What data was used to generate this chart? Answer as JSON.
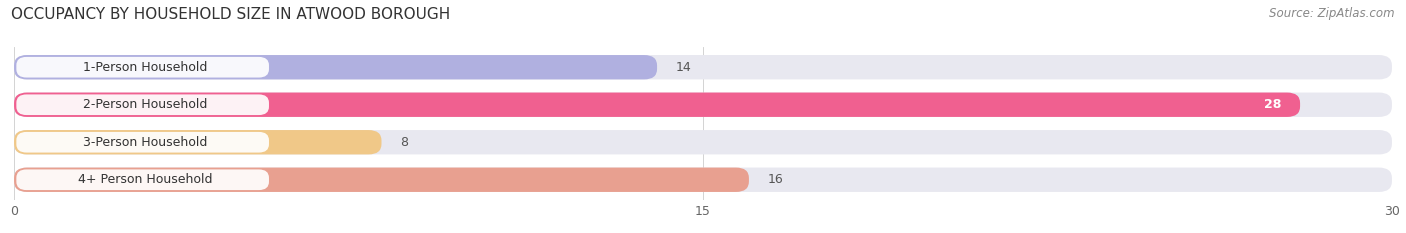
{
  "title": "OCCUPANCY BY HOUSEHOLD SIZE IN ATWOOD BOROUGH",
  "source": "Source: ZipAtlas.com",
  "categories": [
    "1-Person Household",
    "2-Person Household",
    "3-Person Household",
    "4+ Person Household"
  ],
  "values": [
    14,
    28,
    8,
    16
  ],
  "bar_colors": [
    "#b0b0e0",
    "#f06090",
    "#f0c888",
    "#e8a090"
  ],
  "bar_background_color": "#e8e8f0",
  "xlim": [
    0,
    30
  ],
  "xticks": [
    0,
    15,
    30
  ],
  "title_fontsize": 11,
  "source_fontsize": 8.5,
  "label_fontsize": 9,
  "value_color_inside": "#ffffff",
  "value_color_outside": "#555555",
  "background_color": "#ffffff"
}
